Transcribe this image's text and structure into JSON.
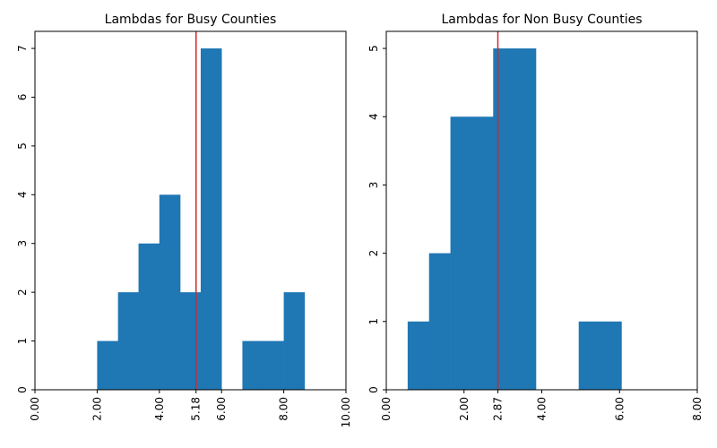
{
  "chart_data": [
    {
      "type": "bar",
      "title": "Lambdas for Busy Counties",
      "xlabel": "",
      "ylabel": "",
      "xlim": [
        0,
        10
      ],
      "ylim": [
        0,
        7.35
      ],
      "xticks": [
        "0.00",
        "2.00",
        "4.00",
        "5.18",
        "6.00",
        "8.00",
        "10.00"
      ],
      "yticks": [
        "0",
        "1",
        "2",
        "3",
        "4",
        "5",
        "6",
        "7"
      ],
      "bins": [
        {
          "start": 2.0,
          "end": 2.67,
          "value": 1
        },
        {
          "start": 2.67,
          "end": 3.33,
          "value": 2
        },
        {
          "start": 3.33,
          "end": 4.0,
          "value": 3
        },
        {
          "start": 4.0,
          "end": 4.67,
          "value": 4
        },
        {
          "start": 4.67,
          "end": 5.33,
          "value": 2
        },
        {
          "start": 5.33,
          "end": 6.0,
          "value": 7
        },
        {
          "start": 6.0,
          "end": 6.67,
          "value": 0
        },
        {
          "start": 6.67,
          "end": 7.33,
          "value": 1
        },
        {
          "start": 7.33,
          "end": 8.0,
          "value": 1
        },
        {
          "start": 8.0,
          "end": 8.67,
          "value": 2
        }
      ],
      "vline": {
        "x": 5.18,
        "color": "#d62728"
      },
      "bar_color": "#1f77b4",
      "grid": false
    },
    {
      "type": "bar",
      "title": "Lambdas for Non Busy Counties",
      "xlabel": "",
      "ylabel": "",
      "xlim": [
        0,
        8
      ],
      "ylim": [
        0,
        5.25
      ],
      "xticks": [
        "0.00",
        "2.00",
        "2.87",
        "4.00",
        "6.00",
        "8.00"
      ],
      "yticks": [
        "0",
        "1",
        "2",
        "3",
        "4",
        "5"
      ],
      "bins": [
        {
          "start": 0.55,
          "end": 1.1,
          "value": 1
        },
        {
          "start": 1.1,
          "end": 1.65,
          "value": 2
        },
        {
          "start": 1.65,
          "end": 2.2,
          "value": 4
        },
        {
          "start": 2.2,
          "end": 2.75,
          "value": 4
        },
        {
          "start": 2.75,
          "end": 3.3,
          "value": 5
        },
        {
          "start": 3.3,
          "end": 3.85,
          "value": 5
        },
        {
          "start": 3.85,
          "end": 4.4,
          "value": 0
        },
        {
          "start": 4.4,
          "end": 4.95,
          "value": 0
        },
        {
          "start": 4.95,
          "end": 5.5,
          "value": 1
        },
        {
          "start": 5.5,
          "end": 6.05,
          "value": 1
        }
      ],
      "vline": {
        "x": 2.87,
        "color": "#d62728"
      },
      "bar_color": "#1f77b4",
      "grid": false
    }
  ]
}
